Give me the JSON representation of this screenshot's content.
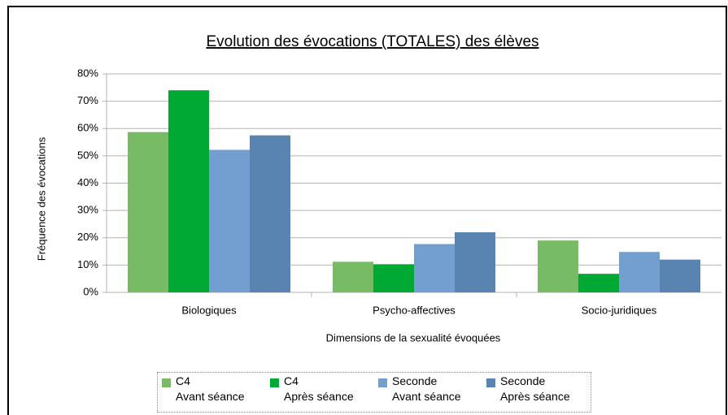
{
  "chart_data": {
    "type": "bar",
    "title": "Evolution des évocations (TOTALES) des élèves",
    "x_label": "Dimensions de la sexualité évoquées",
    "y_label": "Fréquence des évocations",
    "categories": [
      "Biologiques",
      "Psycho-affectives",
      "Socio-juridiques"
    ],
    "series": [
      {
        "name": "C4\nAvant séance",
        "color": "#77bc65",
        "values": [
          58.7,
          11.2,
          19
        ]
      },
      {
        "name": "C4\nAprès séance",
        "color": "#00a933",
        "values": [
          74,
          10.3,
          6.8
        ]
      },
      {
        "name": "Seconde\nAvant séance",
        "color": "#729fcf",
        "values": [
          52.2,
          17.7,
          14.8
        ]
      },
      {
        "name": "Seconde\nAprès séance",
        "color": "#5983b0",
        "values": [
          57.5,
          22,
          12
        ]
      }
    ],
    "ylim": [
      0,
      80
    ],
    "yticks": [
      {
        "value": 0,
        "label": "0%"
      },
      {
        "value": 10,
        "label": "10%"
      },
      {
        "value": 20,
        "label": "20%"
      },
      {
        "value": 30,
        "label": "30%"
      },
      {
        "value": 40,
        "label": "40%"
      },
      {
        "value": 50,
        "label": "50%"
      },
      {
        "value": 60,
        "label": "60%"
      },
      {
        "value": 70,
        "label": "70%"
      },
      {
        "value": 80,
        "label": "80%"
      }
    ],
    "grid": true,
    "legend": "bottom"
  }
}
